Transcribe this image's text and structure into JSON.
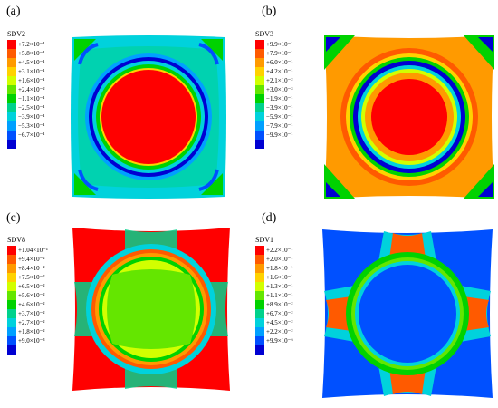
{
  "panels": [
    {
      "label": "(a)",
      "variable": "SDV2",
      "legend": {
        "colors": [
          "#ff0000",
          "#ff5a00",
          "#ff9a00",
          "#ffd200",
          "#d2ff00",
          "#64e600",
          "#00d200",
          "#00d28c",
          "#00d2dc",
          "#00a0ff",
          "#0050ff",
          "#0000d2"
        ],
        "ticks": [
          "+7.2×10⁻¹",
          "+5.8×10⁻¹",
          "+4.5×10⁻¹",
          "+3.1×10⁻¹",
          "+1.6×10⁻¹",
          "+2.4×10⁻²",
          "−1.1×10⁻¹",
          "−2.5×10⁻¹",
          "−3.9×10⁻¹",
          "−5.3×10⁻¹",
          "−6.7×10⁻¹"
        ]
      }
    },
    {
      "label": "(b)",
      "variable": "SDV3",
      "legend": {
        "colors": [
          "#ff0000",
          "#ff5a00",
          "#ff9a00",
          "#ffd200",
          "#d2ff00",
          "#64e600",
          "#00d200",
          "#00d28c",
          "#00d2dc",
          "#00a0ff",
          "#0050ff",
          "#0000d2"
        ],
        "ticks": [
          "+9.9×10⁻¹",
          "+7.9×10⁻¹",
          "+6.0×10⁻¹",
          "+4.2×10⁻¹",
          "+2.1×10⁻²",
          "+3.0×10⁻³",
          "−1.9×10⁻¹",
          "−3.9×10⁻¹",
          "−5.9×10⁻¹",
          "−7.9×10⁻¹",
          "−9.9×10⁻¹"
        ]
      }
    },
    {
      "label": "(c)",
      "variable": "SDV8",
      "legend": {
        "colors": [
          "#ff0000",
          "#ff5a00",
          "#ff9a00",
          "#ffd200",
          "#d2ff00",
          "#64e600",
          "#00d200",
          "#00d28c",
          "#00d2dc",
          "#00a0ff",
          "#0050ff",
          "#0000d2"
        ],
        "ticks": [
          "+1.04×10⁻¹",
          "+9.4×10⁻²",
          "+8.4×10⁻²",
          "+7.5×10⁻²",
          "+6.5×10⁻²",
          "+5.6×10⁻²",
          "+4.6×10⁻²",
          "+3.7×10⁻²",
          "+2.7×10⁻²",
          "+1.8×10⁻²",
          "+9.0×10⁻³"
        ]
      }
    },
    {
      "label": "(d)",
      "variable": "SDV1",
      "legend": {
        "colors": [
          "#ff0000",
          "#ff5a00",
          "#ff9a00",
          "#ffd200",
          "#d2ff00",
          "#64e600",
          "#00d200",
          "#00d28c",
          "#00d2dc",
          "#00a0ff",
          "#0050ff",
          "#0000d2"
        ],
        "ticks": [
          "+2.2×10⁻¹",
          "+2.0×10⁻¹",
          "+1.8×10⁻¹",
          "+1.6×10⁻¹",
          "+1.3×10⁻¹",
          "+1.1×10⁻¹",
          "+8.9×10⁻²",
          "+6.7×10⁻²",
          "+4.5×10⁻²",
          "+2.2×10⁻²",
          "+9.9×10⁻⁶"
        ]
      }
    }
  ]
}
